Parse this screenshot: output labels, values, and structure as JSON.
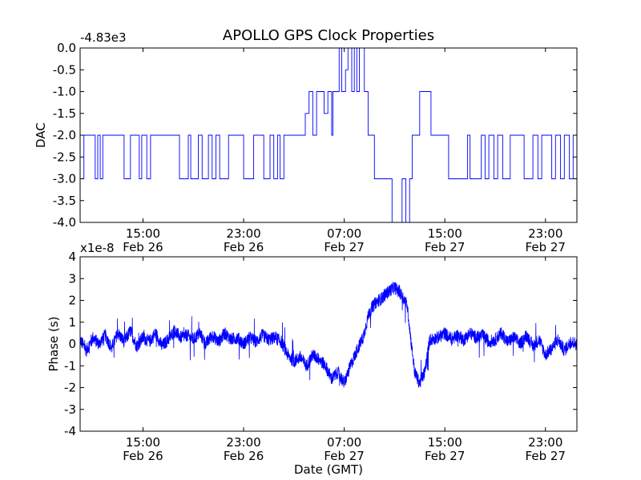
{
  "chart_data": [
    {
      "type": "line",
      "title": "APOLLO GPS Clock Properties",
      "ylabel": "DAC",
      "xlabel": "",
      "offset_label": "-4.83e3",
      "ylim": [
        -4.0,
        0.0
      ],
      "yticks": [
        "0.0",
        "-0.5",
        "-1.0",
        "-1.5",
        "-2.0",
        "-2.5",
        "-3.0",
        "-3.5",
        "-4.0"
      ],
      "xlim_hours": [
        10.0,
        49.5
      ],
      "xticks": [
        {
          "h": 15,
          "time": "15:00",
          "date": "Feb 26"
        },
        {
          "h": 23,
          "time": "23:00",
          "date": "Feb 26"
        },
        {
          "h": 31,
          "time": "07:00",
          "date": "Feb 27"
        },
        {
          "h": 39,
          "time": "15:00",
          "date": "Feb 27"
        },
        {
          "h": 47,
          "time": "23:00",
          "date": "Feb 27"
        }
      ],
      "series": [
        {
          "color": "#0000ff",
          "points": [
            [
              10.0,
              -3.0
            ],
            [
              10.3,
              -2.0
            ],
            [
              11.0,
              -2.0
            ],
            [
              11.2,
              -3.0
            ],
            [
              11.4,
              -2.0
            ],
            [
              11.6,
              -3.0
            ],
            [
              11.8,
              -2.0
            ],
            [
              13.3,
              -2.0
            ],
            [
              13.5,
              -3.0
            ],
            [
              14.0,
              -2.0
            ],
            [
              14.7,
              -3.0
            ],
            [
              14.9,
              -2.0
            ],
            [
              15.3,
              -3.0
            ],
            [
              15.6,
              -2.0
            ],
            [
              17.8,
              -2.0
            ],
            [
              17.9,
              -3.0
            ],
            [
              18.4,
              -3.0
            ],
            [
              18.6,
              -2.0
            ],
            [
              18.8,
              -3.0
            ],
            [
              19.2,
              -3.0
            ],
            [
              19.4,
              -2.0
            ],
            [
              19.7,
              -3.0
            ],
            [
              20.0,
              -3.0
            ],
            [
              20.2,
              -2.0
            ],
            [
              20.5,
              -3.0
            ],
            [
              20.8,
              -2.0
            ],
            [
              21.1,
              -3.0
            ],
            [
              21.6,
              -3.0
            ],
            [
              21.8,
              -2.0
            ],
            [
              22.8,
              -2.0
            ],
            [
              23.0,
              -3.0
            ],
            [
              23.6,
              -3.0
            ],
            [
              23.8,
              -2.0
            ],
            [
              24.4,
              -2.0
            ],
            [
              24.6,
              -3.0
            ],
            [
              25.1,
              -2.0
            ],
            [
              25.4,
              -3.0
            ],
            [
              25.7,
              -2.0
            ],
            [
              25.9,
              -3.0
            ],
            [
              26.2,
              -2.0
            ],
            [
              27.7,
              -2.0
            ],
            [
              27.9,
              -1.5
            ],
            [
              28.2,
              -1.0
            ],
            [
              28.5,
              -2.0
            ],
            [
              28.8,
              -1.0
            ],
            [
              29.2,
              -1.0
            ],
            [
              29.4,
              -1.5
            ],
            [
              29.7,
              -1.0
            ],
            [
              30.0,
              -2.0
            ],
            [
              30.1,
              -1.0
            ],
            [
              30.4,
              -1.0
            ],
            [
              30.6,
              0.0
            ],
            [
              30.8,
              -1.0
            ],
            [
              31.1,
              -0.5
            ],
            [
              31.3,
              0.0
            ],
            [
              31.6,
              -1.0
            ],
            [
              31.8,
              0.0
            ],
            [
              32.0,
              -1.0
            ],
            [
              32.2,
              0.0
            ],
            [
              32.6,
              -1.0
            ],
            [
              32.9,
              -2.0
            ],
            [
              33.2,
              -2.0
            ],
            [
              33.4,
              -3.0
            ],
            [
              34.6,
              -3.0
            ],
            [
              34.8,
              -4.0
            ],
            [
              35.4,
              -4.0
            ],
            [
              35.6,
              -3.0
            ],
            [
              35.9,
              -4.0
            ],
            [
              36.2,
              -3.0
            ],
            [
              36.4,
              -2.0
            ],
            [
              36.8,
              -2.0
            ],
            [
              37.0,
              -1.0
            ],
            [
              37.6,
              -1.0
            ],
            [
              37.9,
              -2.0
            ],
            [
              39.2,
              -2.0
            ],
            [
              39.3,
              -3.0
            ],
            [
              40.6,
              -3.0
            ],
            [
              40.8,
              -2.0
            ],
            [
              41.0,
              -3.0
            ],
            [
              41.7,
              -3.0
            ],
            [
              41.9,
              -2.0
            ],
            [
              42.2,
              -3.0
            ],
            [
              42.5,
              -2.0
            ],
            [
              42.9,
              -3.0
            ],
            [
              43.2,
              -2.0
            ],
            [
              43.6,
              -3.0
            ],
            [
              44.2,
              -2.0
            ],
            [
              45.1,
              -2.0
            ],
            [
              45.3,
              -3.0
            ],
            [
              45.8,
              -3.0
            ],
            [
              46.0,
              -2.0
            ],
            [
              46.4,
              -3.0
            ],
            [
              46.7,
              -2.0
            ],
            [
              47.3,
              -2.0
            ],
            [
              47.5,
              -3.0
            ],
            [
              47.8,
              -2.0
            ],
            [
              48.2,
              -3.0
            ],
            [
              48.5,
              -2.0
            ],
            [
              48.9,
              -3.0
            ],
            [
              49.2,
              -2.0
            ],
            [
              49.5,
              -3.0
            ]
          ]
        }
      ]
    },
    {
      "type": "line",
      "title": "",
      "ylabel": "Phase (s)",
      "xlabel": "Date (GMT)",
      "offset_label": "x1e-8",
      "ylim": [
        -4,
        4
      ],
      "yticks": [
        "4",
        "3",
        "2",
        "1",
        "0",
        "-1",
        "-2",
        "-3",
        "-4"
      ],
      "xlim_hours": [
        10.0,
        49.5
      ],
      "xticks": [
        {
          "h": 15,
          "time": "15:00",
          "date": "Feb 26"
        },
        {
          "h": 23,
          "time": "23:00",
          "date": "Feb 26"
        },
        {
          "h": 31,
          "time": "07:00",
          "date": "Feb 27"
        },
        {
          "h": 39,
          "time": "15:00",
          "date": "Feb 27"
        },
        {
          "h": 47,
          "time": "23:00",
          "date": "Feb 27"
        }
      ],
      "series": [
        {
          "color": "#0000ff",
          "points": [
            [
              10.0,
              0.2
            ],
            [
              10.5,
              -0.3
            ],
            [
              11.0,
              0.3
            ],
            [
              11.5,
              0.0
            ],
            [
              12.0,
              0.4
            ],
            [
              12.5,
              -0.2
            ],
            [
              13.0,
              0.5
            ],
            [
              13.5,
              0.1
            ],
            [
              14.0,
              0.6
            ],
            [
              14.5,
              -0.1
            ],
            [
              15.0,
              0.3
            ],
            [
              15.5,
              0.1
            ],
            [
              16.0,
              0.5
            ],
            [
              16.5,
              -0.1
            ],
            [
              17.0,
              0.2
            ],
            [
              17.5,
              0.6
            ],
            [
              18.0,
              0.3
            ],
            [
              18.5,
              0.4
            ],
            [
              19.0,
              0.2
            ],
            [
              19.5,
              0.5
            ],
            [
              20.0,
              0.0
            ],
            [
              20.5,
              0.4
            ],
            [
              21.0,
              0.1
            ],
            [
              21.5,
              0.5
            ],
            [
              22.0,
              0.2
            ],
            [
              22.5,
              0.3
            ],
            [
              23.0,
              0.0
            ],
            [
              23.5,
              0.3
            ],
            [
              24.0,
              0.1
            ],
            [
              24.5,
              0.4
            ],
            [
              25.0,
              0.2
            ],
            [
              25.5,
              0.3
            ],
            [
              26.0,
              0.1
            ],
            [
              26.5,
              -0.5
            ],
            [
              27.0,
              -0.8
            ],
            [
              27.5,
              -0.6
            ],
            [
              28.0,
              -1.0
            ],
            [
              28.5,
              -0.5
            ],
            [
              29.0,
              -0.7
            ],
            [
              29.5,
              -1.0
            ],
            [
              30.0,
              -1.6
            ],
            [
              30.5,
              -1.3
            ],
            [
              31.0,
              -1.8
            ],
            [
              31.5,
              -1.0
            ],
            [
              32.0,
              -0.3
            ],
            [
              32.5,
              0.3
            ],
            [
              33.0,
              1.5
            ],
            [
              33.5,
              1.9
            ],
            [
              34.0,
              2.1
            ],
            [
              34.5,
              2.4
            ],
            [
              35.0,
              2.6
            ],
            [
              35.5,
              2.3
            ],
            [
              36.0,
              1.8
            ],
            [
              36.3,
              0.2
            ],
            [
              36.6,
              -1.3
            ],
            [
              37.0,
              -1.8
            ],
            [
              37.4,
              -1.3
            ],
            [
              37.8,
              0.2
            ],
            [
              38.5,
              0.3
            ],
            [
              39.0,
              0.5
            ],
            [
              39.5,
              0.2
            ],
            [
              40.0,
              0.4
            ],
            [
              40.5,
              0.2
            ],
            [
              41.0,
              0.5
            ],
            [
              41.5,
              0.3
            ],
            [
              42.0,
              0.4
            ],
            [
              42.5,
              0.1
            ],
            [
              43.0,
              0.2
            ],
            [
              43.5,
              0.5
            ],
            [
              44.0,
              0.1
            ],
            [
              44.5,
              0.3
            ],
            [
              45.0,
              0.0
            ],
            [
              45.5,
              0.4
            ],
            [
              46.0,
              -0.1
            ],
            [
              46.5,
              0.2
            ],
            [
              47.0,
              -0.5
            ],
            [
              47.5,
              -0.2
            ],
            [
              48.0,
              0.2
            ],
            [
              48.5,
              -0.3
            ],
            [
              49.0,
              0.1
            ],
            [
              49.5,
              0.0
            ]
          ],
          "noise": 0.3
        }
      ]
    }
  ]
}
